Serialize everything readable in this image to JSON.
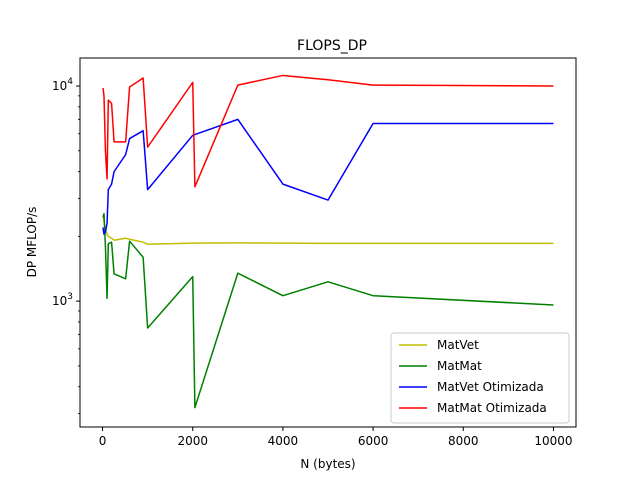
{
  "chart_data": {
    "type": "line",
    "title": "FLOPS_DP",
    "xlabel": "N (bytes)",
    "ylabel": "DP MFLOP/s",
    "yscale": "log",
    "xlim": [
      -500,
      10500
    ],
    "ylim": [
      260,
      13500
    ],
    "xticks": [
      0,
      2000,
      4000,
      6000,
      8000,
      10000
    ],
    "yticks": [
      {
        "value": 1000,
        "base": "10",
        "exp": "3"
      },
      {
        "value": 10000,
        "base": "10",
        "exp": "4"
      }
    ],
    "grid": false,
    "legend_position": "lower-right",
    "series": [
      {
        "name": "MatVet",
        "color": "#bfbf00",
        "x": [
          10,
          32,
          64,
          100,
          128,
          200,
          256,
          512,
          600,
          900,
          1000,
          2000,
          3000,
          4000,
          5000,
          6000,
          10000
        ],
        "y": [
          2500,
          2350,
          2150,
          2050,
          2000,
          1960,
          1920,
          1960,
          1940,
          1880,
          1840,
          1860,
          1865,
          1860,
          1855,
          1855,
          1855
        ]
      },
      {
        "name": "MatMat",
        "color": "#008000",
        "x": [
          10,
          32,
          64,
          100,
          128,
          200,
          256,
          512,
          600,
          900,
          1000,
          2000,
          2048,
          3000,
          4000,
          5000,
          6000,
          10000
        ],
        "y": [
          2450,
          2550,
          1800,
          1030,
          1850,
          1880,
          1340,
          1270,
          1900,
          1600,
          750,
          1300,
          320,
          1350,
          1060,
          1230,
          1060,
          960
        ]
      },
      {
        "name": "MatVet Otimizada",
        "color": "#0000ff",
        "x": [
          10,
          32,
          64,
          100,
          128,
          200,
          256,
          512,
          600,
          900,
          1000,
          2000,
          3000,
          4000,
          5000,
          6000,
          10000
        ],
        "y": [
          2200,
          2050,
          2100,
          2300,
          3300,
          3500,
          4000,
          4800,
          5700,
          6200,
          3300,
          5900,
          7000,
          3500,
          2950,
          6700,
          6700
        ]
      },
      {
        "name": "MatMat Otimizada",
        "color": "#ff0000",
        "x": [
          10,
          32,
          64,
          100,
          128,
          200,
          256,
          512,
          600,
          900,
          1000,
          2000,
          2048,
          3000,
          4000,
          5000,
          6000,
          10000
        ],
        "y": [
          9800,
          9000,
          5000,
          3700,
          8600,
          8300,
          5500,
          5500,
          9900,
          10900,
          5200,
          10400,
          3400,
          10100,
          11200,
          10700,
          10100,
          10000
        ]
      }
    ]
  }
}
